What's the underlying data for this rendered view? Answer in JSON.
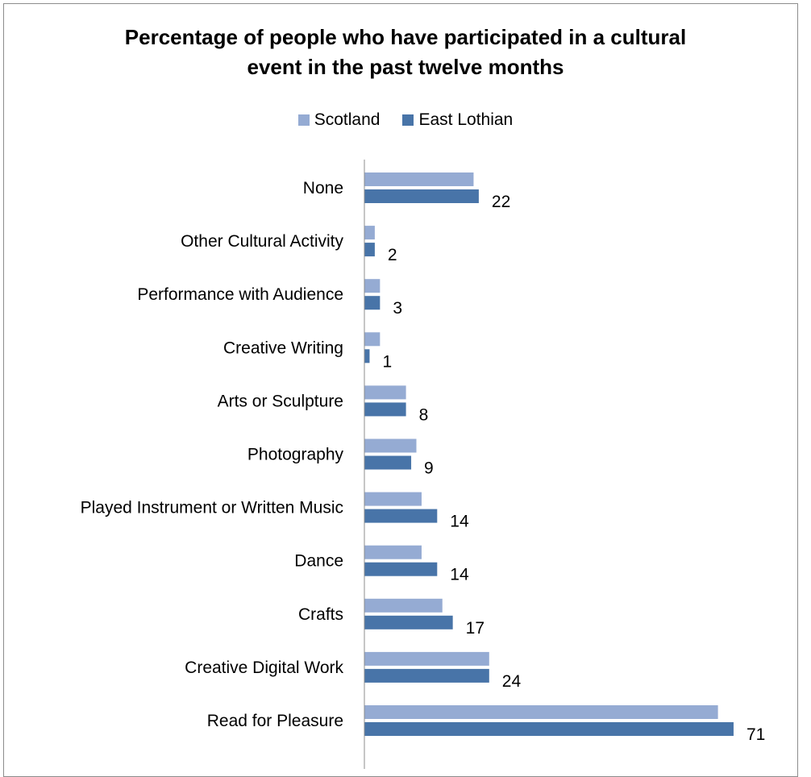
{
  "chart_data": {
    "type": "bar",
    "orientation": "horizontal",
    "title_lines": [
      "Percentage of people who have participated in a cultural",
      "event in the past twelve months"
    ],
    "categories": [
      "None",
      "Other Cultural Activity",
      "Performance with Audience",
      "Creative Writing",
      "Arts or Sculpture",
      "Photography",
      "Played Instrument or Written Music",
      "Dance",
      "Crafts",
      "Creative Digital Work",
      "Read for Pleasure"
    ],
    "series": [
      {
        "name": "Scotland",
        "color": "#95abd3",
        "values": [
          21,
          2,
          3,
          3,
          8,
          10,
          11,
          11,
          15,
          24,
          68
        ],
        "show_labels": false
      },
      {
        "name": "East Lothian",
        "color": "#4874a8",
        "values": [
          22,
          2,
          3,
          1,
          8,
          9,
          14,
          14,
          17,
          24,
          71
        ],
        "show_labels": true
      }
    ],
    "xlim": [
      0,
      75
    ],
    "grid": false,
    "legend_position": "top",
    "xlabel": "",
    "ylabel": ""
  }
}
